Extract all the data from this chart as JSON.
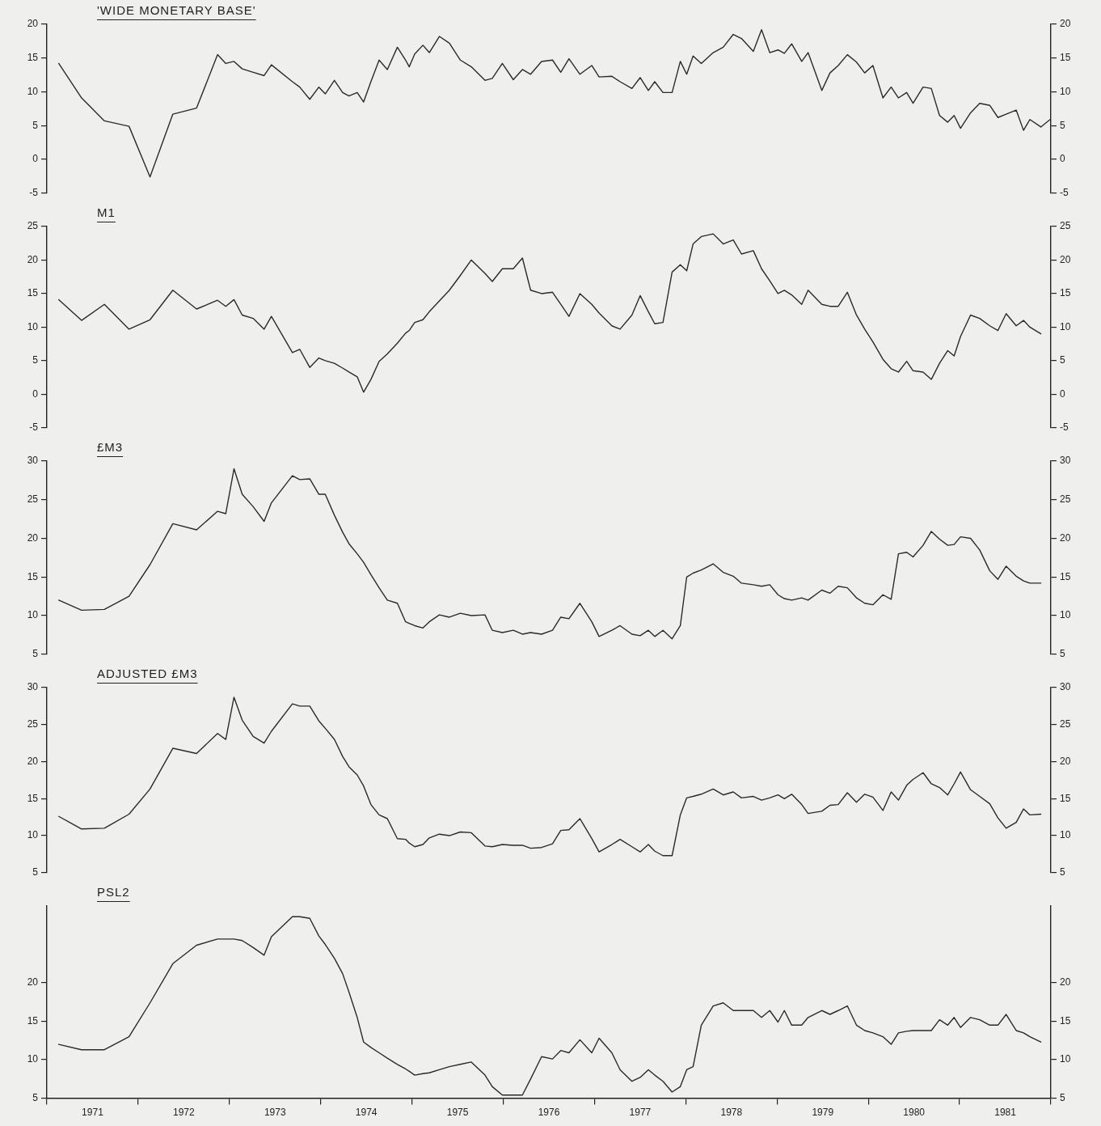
{
  "chart_data": [
    {
      "type": "line",
      "title": "'WIDE MONETARY BASE'",
      "color": "#2a2a2a",
      "marker": "none",
      "line_style": "solid",
      "grid": false,
      "legend": false,
      "tick_labels": "y",
      "x": [
        1971.13,
        1971.38,
        1971.63,
        1971.9,
        1972.13,
        1972.38,
        1972.64,
        1972.87,
        1972.96,
        1973.05,
        1973.14,
        1973.26,
        1973.38,
        1973.46,
        1973.69,
        1973.77,
        1973.88,
        1973.98,
        1974.05,
        1974.15,
        1974.24,
        1974.31,
        1974.4,
        1974.47,
        1974.55,
        1974.64,
        1974.73,
        1974.84,
        1974.93,
        1974.97,
        1975.03,
        1975.12,
        1975.19,
        1975.3,
        1975.41,
        1975.53,
        1975.65,
        1975.8,
        1975.88,
        1975.99,
        1976.11,
        1976.21,
        1976.3,
        1976.42,
        1976.54,
        1976.63,
        1976.72,
        1976.84,
        1976.97,
        1977.05,
        1977.19,
        1977.28,
        1977.41,
        1977.5,
        1977.59,
        1977.66,
        1977.75,
        1977.85,
        1977.94,
        1978.01,
        1978.08,
        1978.17,
        1978.3,
        1978.41,
        1978.52,
        1978.61,
        1978.74,
        1978.83,
        1978.92,
        1979.01,
        1979.08,
        1979.16,
        1979.27,
        1979.34,
        1979.49,
        1979.58,
        1979.67,
        1979.77,
        1979.87,
        1979.96,
        1980.05,
        1980.16,
        1980.25,
        1980.33,
        1980.42,
        1980.49,
        1980.6,
        1980.69,
        1980.78,
        1980.87,
        1980.94,
        1981.01,
        1981.12,
        1981.22,
        1981.33,
        1981.42,
        1981.51,
        1981.62,
        1981.7,
        1981.77,
        1981.89,
        1982.0
      ],
      "values": [
        14.2,
        9.1,
        5.7,
        4.9,
        -2.6,
        6.7,
        7.6,
        15.5,
        14.2,
        14.5,
        13.4,
        12.9,
        12.4,
        14,
        11.5,
        10.7,
        8.9,
        10.7,
        9.7,
        11.7,
        9.9,
        9.4,
        9.9,
        8.5,
        11.5,
        14.7,
        13.3,
        16.6,
        14.7,
        13.7,
        15.6,
        16.9,
        15.8,
        18.2,
        17.2,
        14.7,
        13.7,
        11.7,
        12,
        14.2,
        11.8,
        13.3,
        12.6,
        14.5,
        14.7,
        12.9,
        14.9,
        12.6,
        13.9,
        12.2,
        12.3,
        11.5,
        10.5,
        12.1,
        10.2,
        11.5,
        9.9,
        9.9,
        14.5,
        12.6,
        15.3,
        14.2,
        15.8,
        16.6,
        18.5,
        17.9,
        16,
        19.2,
        15.8,
        16.2,
        15.7,
        17.1,
        14.5,
        15.8,
        10.2,
        12.8,
        13.9,
        15.5,
        14.4,
        12.8,
        13.9,
        9.1,
        10.7,
        9.1,
        9.9,
        8.3,
        10.7,
        10.5,
        6.5,
        5.5,
        6.5,
        4.6,
        6.9,
        8.3,
        8,
        6.2,
        6.7,
        7.3,
        4.3,
        5.9,
        4.8,
        6
      ],
      "xlim": [
        1971,
        1982
      ],
      "ylim": [
        -5,
        20
      ],
      "yticks": [
        -5,
        0,
        5,
        10,
        15,
        20
      ],
      "y2lim": [
        -5,
        20
      ],
      "y2ticks": [
        -5,
        0,
        5,
        10,
        15,
        20
      ]
    },
    {
      "type": "line",
      "title": "M1",
      "color": "#2a2a2a",
      "marker": "none",
      "line_style": "solid",
      "grid": false,
      "legend": false,
      "tick_labels": "y",
      "x": [
        1971.13,
        1971.38,
        1971.63,
        1971.9,
        1972.13,
        1972.38,
        1972.64,
        1972.87,
        1972.96,
        1973.05,
        1973.14,
        1973.26,
        1973.38,
        1973.46,
        1973.69,
        1973.77,
        1973.88,
        1973.98,
        1974.05,
        1974.15,
        1974.24,
        1974.31,
        1974.4,
        1974.47,
        1974.55,
        1974.64,
        1974.73,
        1974.84,
        1974.93,
        1974.97,
        1975.03,
        1975.12,
        1975.19,
        1975.3,
        1975.41,
        1975.53,
        1975.65,
        1975.8,
        1975.88,
        1975.99,
        1976.11,
        1976.21,
        1976.3,
        1976.42,
        1976.54,
        1976.63,
        1976.72,
        1976.84,
        1976.97,
        1977.05,
        1977.19,
        1977.28,
        1977.41,
        1977.5,
        1977.59,
        1977.66,
        1977.75,
        1977.85,
        1977.94,
        1978.01,
        1978.08,
        1978.17,
        1978.3,
        1978.41,
        1978.52,
        1978.61,
        1978.74,
        1978.83,
        1978.92,
        1979.01,
        1979.08,
        1979.16,
        1979.27,
        1979.34,
        1979.49,
        1979.58,
        1979.67,
        1979.77,
        1979.87,
        1979.96,
        1980.05,
        1980.16,
        1980.25,
        1980.33,
        1980.42,
        1980.49,
        1980.6,
        1980.69,
        1980.78,
        1980.87,
        1980.94,
        1981.01,
        1981.12,
        1981.22,
        1981.33,
        1981.42,
        1981.51,
        1981.62,
        1981.7,
        1981.77,
        1981.89
      ],
      "values": [
        14.1,
        11,
        13.4,
        9.7,
        11.1,
        15.5,
        12.7,
        14.0,
        13.1,
        14.1,
        11.8,
        11.3,
        9.7,
        11.6,
        6.2,
        6.7,
        4.0,
        5.4,
        5.0,
        4.6,
        3.9,
        3.3,
        2.6,
        0.3,
        2.2,
        4.9,
        6.0,
        7.6,
        9.1,
        9.5,
        10.7,
        11.1,
        12.3,
        13.9,
        15.5,
        17.7,
        20,
        18,
        16.8,
        18.7,
        18.7,
        20.3,
        15.5,
        15,
        15.2,
        13.4,
        11.6,
        15,
        13.4,
        12.1,
        10.2,
        9.7,
        11.8,
        14.7,
        12.3,
        10.5,
        10.7,
        18.2,
        19.3,
        18.4,
        22.4,
        23.5,
        23.9,
        22.4,
        23,
        20.9,
        21.4,
        18.7,
        16.9,
        15,
        15.5,
        14.8,
        13.4,
        15.5,
        13.4,
        13.1,
        13.1,
        15.2,
        11.8,
        9.7,
        7.8,
        5.2,
        3.8,
        3.3,
        4.9,
        3.5,
        3.3,
        2.2,
        4.6,
        6.5,
        5.7,
        8.6,
        11.8,
        11.3,
        10.2,
        9.5,
        12,
        10.2,
        11,
        10,
        9.0
      ],
      "xlim": [
        1971,
        1982
      ],
      "ylim": [
        -5,
        25
      ],
      "yticks": [
        -5,
        0,
        5,
        10,
        15,
        20,
        25
      ],
      "y2lim": [
        -5,
        25
      ],
      "y2ticks": [
        -5,
        0,
        5,
        10,
        15,
        20,
        25
      ]
    },
    {
      "type": "line",
      "title": "£M3",
      "color": "#2a2a2a",
      "marker": "none",
      "line_style": "solid",
      "grid": false,
      "legend": false,
      "tick_labels": "y",
      "x": [
        1971.13,
        1971.38,
        1971.63,
        1971.9,
        1972.13,
        1972.38,
        1972.64,
        1972.87,
        1972.96,
        1973.05,
        1973.14,
        1973.26,
        1973.38,
        1973.46,
        1973.69,
        1973.77,
        1973.88,
        1973.98,
        1974.05,
        1974.15,
        1974.24,
        1974.31,
        1974.4,
        1974.47,
        1974.55,
        1974.64,
        1974.73,
        1974.84,
        1974.93,
        1974.97,
        1975.03,
        1975.12,
        1975.19,
        1975.3,
        1975.41,
        1975.53,
        1975.65,
        1975.8,
        1975.88,
        1975.99,
        1976.11,
        1976.21,
        1976.3,
        1976.42,
        1976.54,
        1976.63,
        1976.72,
        1976.84,
        1976.97,
        1977.05,
        1977.19,
        1977.28,
        1977.41,
        1977.5,
        1977.59,
        1977.66,
        1977.75,
        1977.85,
        1977.94,
        1978.01,
        1978.08,
        1978.17,
        1978.3,
        1978.41,
        1978.52,
        1978.61,
        1978.74,
        1978.83,
        1978.92,
        1979.01,
        1979.08,
        1979.16,
        1979.27,
        1979.34,
        1979.49,
        1979.58,
        1979.67,
        1979.77,
        1979.87,
        1979.96,
        1980.05,
        1980.16,
        1980.25,
        1980.33,
        1980.42,
        1980.49,
        1980.6,
        1980.69,
        1980.78,
        1980.87,
        1980.94,
        1981.01,
        1981.12,
        1981.22,
        1981.33,
        1981.42,
        1981.51,
        1981.62,
        1981.7,
        1981.77,
        1981.89
      ],
      "values": [
        12.0,
        10.7,
        10.8,
        12.5,
        16.6,
        21.9,
        21.1,
        23.5,
        23.2,
        29.0,
        25.7,
        24.1,
        22.2,
        24.6,
        28.1,
        27.6,
        27.7,
        25.7,
        25.7,
        23,
        20.8,
        19.3,
        18,
        16.9,
        15.3,
        13.6,
        12,
        11.6,
        9.2,
        9.0,
        8.7,
        8.4,
        9.2,
        10.1,
        9.8,
        10.3,
        10,
        10.1,
        8.1,
        7.8,
        8.1,
        7.6,
        7.8,
        7.6,
        8.1,
        9.8,
        9.6,
        11.6,
        9.2,
        7.3,
        8.1,
        8.7,
        7.6,
        7.4,
        8.1,
        7.3,
        8.1,
        7,
        8.7,
        15,
        15.5,
        15.9,
        16.7,
        15.6,
        15.1,
        14.2,
        14,
        13.8,
        14,
        12.7,
        12.2,
        12,
        12.3,
        12,
        13.3,
        12.9,
        13.8,
        13.6,
        12.3,
        11.6,
        11.4,
        12.7,
        12.1,
        18.0,
        18.2,
        17.6,
        19.1,
        20.9,
        19.9,
        19.1,
        19.2,
        20.2,
        20,
        18.5,
        15.8,
        14.7,
        16.4,
        15.1,
        14.5,
        14.2,
        14.2
      ],
      "xlim": [
        1971,
        1982
      ],
      "ylim": [
        5,
        30
      ],
      "yticks": [
        5,
        10,
        15,
        20,
        25,
        30
      ],
      "y2lim": [
        5,
        30
      ],
      "y2ticks": [
        5,
        10,
        15,
        20,
        25,
        30
      ]
    },
    {
      "type": "line",
      "title": "ADJUSTED £M3",
      "color": "#2a2a2a",
      "marker": "none",
      "line_style": "solid",
      "grid": false,
      "legend": false,
      "tick_labels": "y",
      "x": [
        1971.13,
        1971.38,
        1971.63,
        1971.9,
        1972.13,
        1972.38,
        1972.64,
        1972.87,
        1972.96,
        1973.05,
        1973.14,
        1973.26,
        1973.38,
        1973.46,
        1973.69,
        1973.77,
        1973.88,
        1973.98,
        1974.05,
        1974.15,
        1974.24,
        1974.31,
        1974.4,
        1974.47,
        1974.55,
        1974.64,
        1974.73,
        1974.84,
        1974.93,
        1974.97,
        1975.03,
        1975.12,
        1975.19,
        1975.3,
        1975.41,
        1975.53,
        1975.65,
        1975.8,
        1975.88,
        1975.99,
        1976.11,
        1976.21,
        1976.3,
        1976.42,
        1976.54,
        1976.63,
        1976.72,
        1976.84,
        1976.97,
        1977.05,
        1977.19,
        1977.28,
        1977.41,
        1977.5,
        1977.59,
        1977.66,
        1977.75,
        1977.85,
        1977.94,
        1978.01,
        1978.08,
        1978.17,
        1978.3,
        1978.41,
        1978.52,
        1978.61,
        1978.74,
        1978.83,
        1978.92,
        1979.01,
        1979.08,
        1979.16,
        1979.27,
        1979.34,
        1979.49,
        1979.58,
        1979.67,
        1979.77,
        1979.87,
        1979.96,
        1980.05,
        1980.16,
        1980.25,
        1980.33,
        1980.42,
        1980.49,
        1980.6,
        1980.69,
        1980.78,
        1980.87,
        1980.94,
        1981.01,
        1981.12,
        1981.22,
        1981.33,
        1981.42,
        1981.51,
        1981.62,
        1981.7,
        1981.77,
        1981.89
      ],
      "values": [
        12.6,
        10.9,
        11,
        12.9,
        16.3,
        21.8,
        21.1,
        23.8,
        23.0,
        28.7,
        25.6,
        23.4,
        22.5,
        24.1,
        27.8,
        27.5,
        27.5,
        25.5,
        24.5,
        23,
        20.7,
        19.3,
        18.2,
        16.7,
        14.2,
        12.8,
        12.3,
        9.6,
        9.5,
        9.0,
        8.5,
        8.8,
        9.7,
        10.2,
        10,
        10.5,
        10.4,
        8.6,
        8.5,
        8.8,
        8.7,
        8.7,
        8.3,
        8.4,
        8.9,
        10.7,
        10.8,
        12.3,
        9.6,
        7.8,
        8.8,
        9.5,
        8.5,
        7.8,
        8.8,
        7.9,
        7.3,
        7.3,
        12.8,
        15.1,
        15.3,
        15.6,
        16.3,
        15.5,
        15.9,
        15.1,
        15.3,
        14.8,
        15.1,
        15.5,
        15,
        15.6,
        14.2,
        13,
        13.3,
        14.1,
        14.2,
        15.8,
        14.5,
        15.6,
        15.2,
        13.4,
        15.9,
        14.8,
        16.8,
        17.6,
        18.5,
        17,
        16.5,
        15.5,
        17,
        18.6,
        16.2,
        15.3,
        14.3,
        12.4,
        11,
        11.8,
        13.6,
        12.8,
        12.9
      ],
      "xlim": [
        1971,
        1982
      ],
      "ylim": [
        5,
        30
      ],
      "yticks": [
        5,
        10,
        15,
        20,
        25,
        30
      ],
      "y2lim": [
        5,
        30
      ],
      "y2ticks": [
        5,
        10,
        15,
        20,
        25,
        30
      ]
    },
    {
      "type": "line",
      "title": "PSL2",
      "color": "#2a2a2a",
      "marker": "none",
      "line_style": "solid",
      "grid": false,
      "legend": false,
      "x": [
        1971.13,
        1971.38,
        1971.63,
        1971.9,
        1972.13,
        1972.38,
        1972.64,
        1972.87,
        1972.96,
        1973.05,
        1973.14,
        1973.26,
        1973.38,
        1973.46,
        1973.69,
        1973.77,
        1973.88,
        1973.98,
        1974.05,
        1974.15,
        1974.24,
        1974.31,
        1974.4,
        1974.47,
        1974.55,
        1974.64,
        1974.73,
        1974.84,
        1974.93,
        1974.97,
        1975.03,
        1975.12,
        1975.19,
        1975.3,
        1975.41,
        1975.53,
        1975.65,
        1975.8,
        1975.88,
        1975.99,
        1976.11,
        1976.21,
        1976.3,
        1976.42,
        1976.54,
        1976.63,
        1976.72,
        1976.84,
        1976.97,
        1977.05,
        1977.19,
        1977.28,
        1977.41,
        1977.5,
        1977.59,
        1977.66,
        1977.75,
        1977.85,
        1977.94,
        1978.01,
        1978.08,
        1978.17,
        1978.3,
        1978.41,
        1978.52,
        1978.61,
        1978.74,
        1978.83,
        1978.92,
        1979.01,
        1979.08,
        1979.16,
        1979.27,
        1979.34,
        1979.49,
        1979.58,
        1979.67,
        1979.77,
        1979.87,
        1979.96,
        1980.05,
        1980.16,
        1980.25,
        1980.33,
        1980.42,
        1980.49,
        1980.6,
        1980.69,
        1980.78,
        1980.87,
        1980.94,
        1981.01,
        1981.12,
        1981.22,
        1981.33,
        1981.42,
        1981.51,
        1981.62,
        1981.7,
        1981.77,
        1981.89
      ],
      "values": [
        12,
        11.3,
        11.3,
        13,
        17.4,
        22.5,
        24.9,
        25.7,
        25.7,
        25.7,
        25.5,
        24.6,
        23.6,
        26,
        28.6,
        28.6,
        28.4,
        26.1,
        25,
        23.2,
        21.2,
        18.8,
        15.5,
        12.3,
        11.6,
        10.9,
        10.2,
        9.4,
        8.8,
        8.5,
        8,
        8.2,
        8.3,
        8.7,
        9.1,
        9.4,
        9.7,
        8,
        6.5,
        5.4,
        5.4,
        5.4,
        7.5,
        10.4,
        10.1,
        11.2,
        10.9,
        12.6,
        10.9,
        12.8,
        10.9,
        8.7,
        7.2,
        7.7,
        8.7,
        8,
        7.2,
        5.8,
        6.5,
        8.7,
        9.1,
        14.5,
        17,
        17.4,
        16.4,
        16.4,
        16.4,
        15.5,
        16.4,
        14.9,
        16.4,
        14.5,
        14.5,
        15.5,
        16.4,
        15.9,
        16.4,
        17,
        14.5,
        13.8,
        13.5,
        13,
        12,
        13.5,
        13.7,
        13.8,
        13.8,
        13.8,
        15.2,
        14.5,
        15.5,
        14.2,
        15.5,
        15.2,
        14.5,
        14.5,
        15.9,
        13.8,
        13.5,
        13,
        12.3
      ],
      "xlim": [
        1971,
        1982
      ],
      "xticks": [
        {
          "value": 1971,
          "label": null
        },
        {
          "value": 1971.5,
          "label": "1971"
        },
        {
          "value": 1972,
          "label": null
        },
        {
          "value": 1972.5,
          "label": "1972"
        },
        {
          "value": 1973,
          "label": null
        },
        {
          "value": 1973.5,
          "label": "1973"
        },
        {
          "value": 1974,
          "label": null
        },
        {
          "value": 1974.5,
          "label": "1974"
        },
        {
          "value": 1975,
          "label": null
        },
        {
          "value": 1975.5,
          "label": "1975"
        },
        {
          "value": 1976,
          "label": null
        },
        {
          "value": 1976.5,
          "label": "1976"
        },
        {
          "value": 1977,
          "label": null
        },
        {
          "value": 1977.5,
          "label": "1977"
        },
        {
          "value": 1978,
          "label": null
        },
        {
          "value": 1978.5,
          "label": "1978"
        },
        {
          "value": 1979,
          "label": null
        },
        {
          "value": 1979.5,
          "label": "1979"
        },
        {
          "value": 1980,
          "label": null
        },
        {
          "value": 1980.5,
          "label": "1980"
        },
        {
          "value": 1981,
          "label": null
        },
        {
          "value": 1981.5,
          "label": "1981"
        },
        {
          "value": 1982,
          "label": null
        }
      ],
      "ylim": [
        5,
        30
      ],
      "yticks": [
        5,
        10,
        15,
        20
      ],
      "y2lim": [
        5,
        30
      ],
      "y2ticks": [
        5,
        10,
        15,
        20
      ]
    }
  ]
}
